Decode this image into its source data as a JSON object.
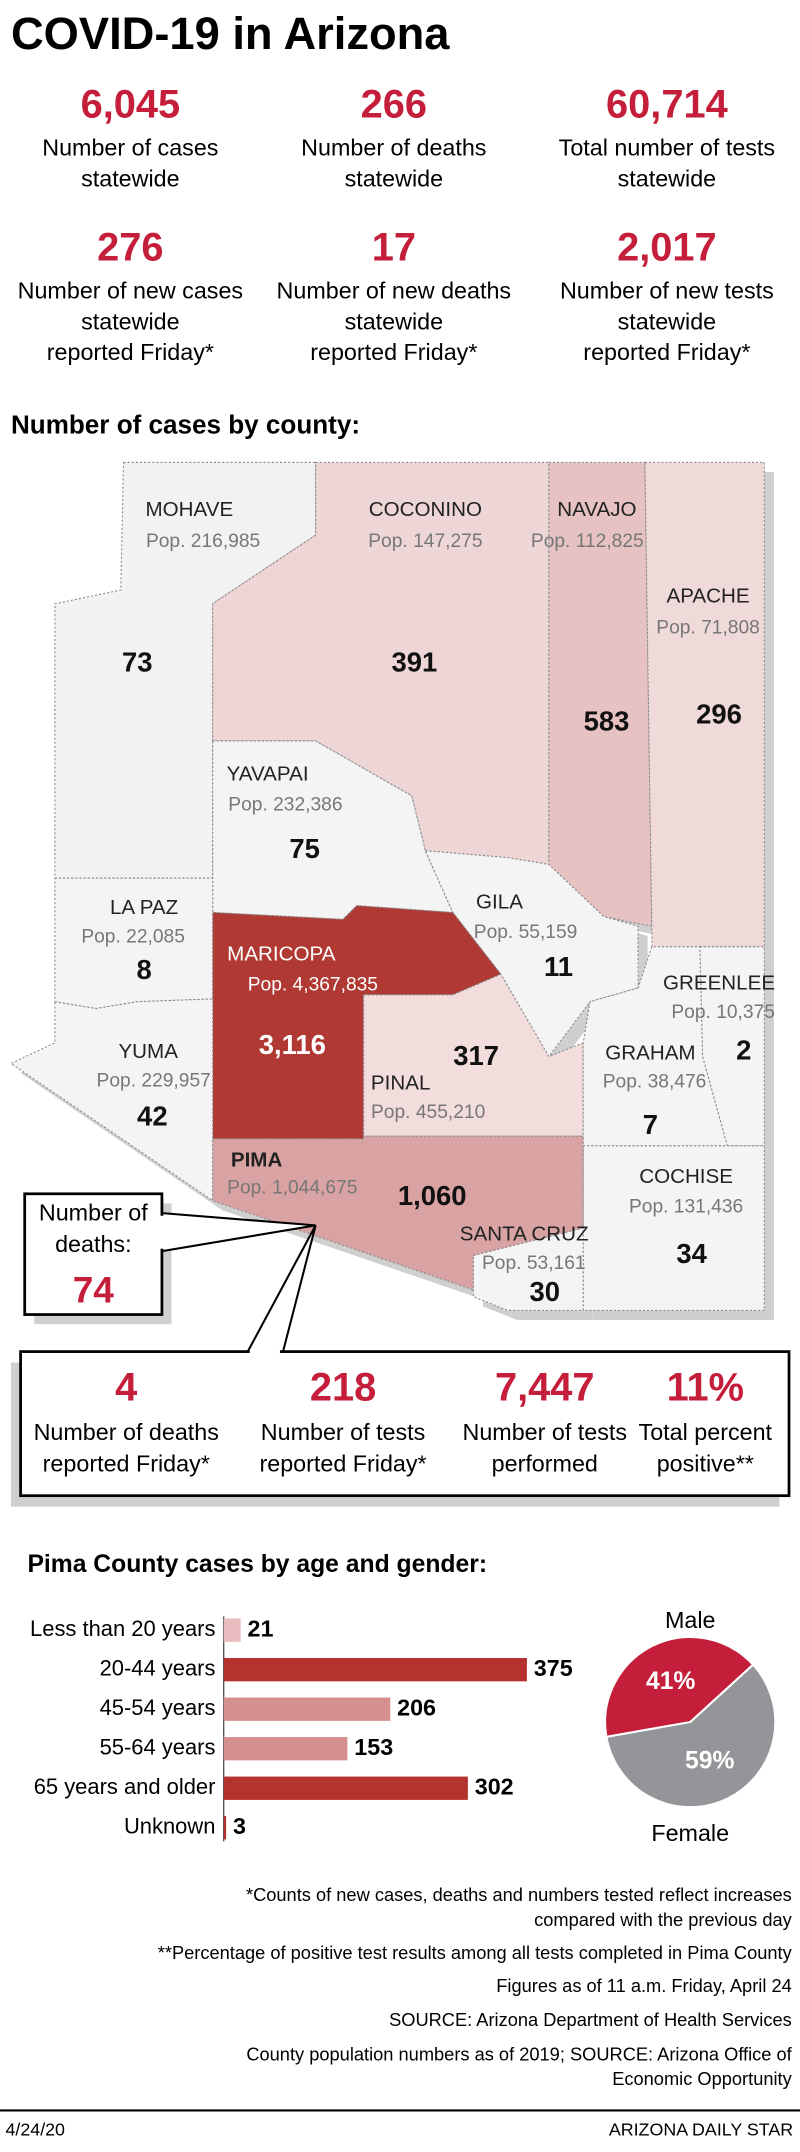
{
  "title": "COVID-19 in Arizona",
  "stats": [
    {
      "value": "6,045",
      "lines": [
        "Number of cases",
        "statewide"
      ]
    },
    {
      "value": "266",
      "lines": [
        "Number of deaths",
        "statewide"
      ]
    },
    {
      "value": "60,714",
      "lines": [
        "Total number of tests",
        "statewide"
      ]
    },
    {
      "value": "276",
      "lines": [
        "Number of new cases",
        "statewide",
        "reported Friday*"
      ]
    },
    {
      "value": "17",
      "lines": [
        "Number of new deaths",
        "statewide",
        "reported Friday*"
      ]
    },
    {
      "value": "2,017",
      "lines": [
        "Number of new tests",
        "statewide",
        "reported Friday*"
      ]
    }
  ],
  "map": {
    "heading": "Number of cases by county:",
    "counties": [
      {
        "name": "MOHAVE",
        "pop": "Pop. 216,985",
        "cases": "73",
        "color": "#f2f2f2"
      },
      {
        "name": "COCONINO",
        "pop": "Pop. 147,275",
        "cases": "391",
        "color": "#efd6d6"
      },
      {
        "name": "NAVAJO",
        "pop": "Pop. 112,825",
        "cases": "583",
        "color": "#e6c2c2"
      },
      {
        "name": "APACHE",
        "pop": "Pop. 71,808",
        "cases": "296",
        "color": "#efd9d9"
      },
      {
        "name": "YAVAPAI",
        "pop": "Pop. 232,386",
        "cases": "75",
        "color": "#f4f4f4"
      },
      {
        "name": "LA PAZ",
        "pop": "Pop. 22,085",
        "cases": "8",
        "color": "#f4f4f4"
      },
      {
        "name": "GILA",
        "pop": "Pop. 55,159",
        "cases": "11",
        "color": "#f4f4f4"
      },
      {
        "name": "MARICOPA",
        "pop": "Pop. 4,367,835",
        "cases": "3,116",
        "color": "#b03a33"
      },
      {
        "name": "GREENLEE",
        "pop": "Pop. 10,375",
        "cases": "2",
        "color": "#f4f4f4"
      },
      {
        "name": "PINAL",
        "pop": "Pop. 455,210",
        "cases": "317",
        "color": "#f2dcdc"
      },
      {
        "name": "GRAHAM",
        "pop": "Pop. 38,476",
        "cases": "7",
        "color": "#f4f4f4"
      },
      {
        "name": "YUMA",
        "pop": "Pop. 229,957",
        "cases": "42",
        "color": "#f4f4f4"
      },
      {
        "name": "COCHISE",
        "pop": "Pop. 131,436",
        "cases": "34",
        "color": "#f4f4f4"
      },
      {
        "name": "PIMA",
        "pop": "Pop. 1,044,675",
        "cases": "1,060",
        "color": "#d9a3a3"
      },
      {
        "name": "SANTA CRUZ",
        "pop": "Pop. 53,161",
        "cases": "30",
        "color": "#f4f4f4"
      }
    ],
    "deaths_lines": [
      "Number of",
      "deaths:"
    ],
    "deaths": "74"
  },
  "pima_stats": [
    {
      "value": "4",
      "lines": [
        "Number of deaths",
        "reported Friday*"
      ]
    },
    {
      "value": "218",
      "lines": [
        "Number of tests",
        "reported Friday*"
      ]
    },
    {
      "value": "7,447",
      "lines": [
        "Number of tests",
        "performed"
      ]
    },
    {
      "value": "11%",
      "lines": [
        "Total percent",
        "positive**"
      ]
    }
  ],
  "chart_data": [
    {
      "type": "bar",
      "title": "Pima County cases by age and gender:",
      "categories": [
        "Less than 20 years",
        "20-44 years",
        "45-54 years",
        "55-64 years",
        "65 years and older",
        "Unknown"
      ],
      "values": [
        21,
        375,
        206,
        153,
        302,
        3
      ],
      "colors": [
        "#ebbcbf",
        "#b5332e",
        "#d58f8f",
        "#d58f8f",
        "#b5332e",
        "#b5332e"
      ]
    },
    {
      "type": "pie",
      "categories": [
        "Male",
        "Female"
      ],
      "values": [
        41,
        59
      ],
      "value_labels": [
        "41%",
        "59%"
      ],
      "colors": [
        "#c41e3a",
        "#939598"
      ]
    }
  ],
  "notes": [
    "*Counts of new cases, deaths and numbers tested reflect increases",
    "compared with the previous day",
    "**Percentage of positive test results among all tests completed in Pima County",
    "Figures as of 11 a.m. Friday, April 24",
    "SOURCE: Arizona Department of Health Services",
    "County population numbers as of 2019; SOURCE: Arizona Office of",
    "Economic Opportunity"
  ],
  "footer": {
    "date": "4/24/20",
    "credit": "ARIZONA DAILY STAR"
  }
}
